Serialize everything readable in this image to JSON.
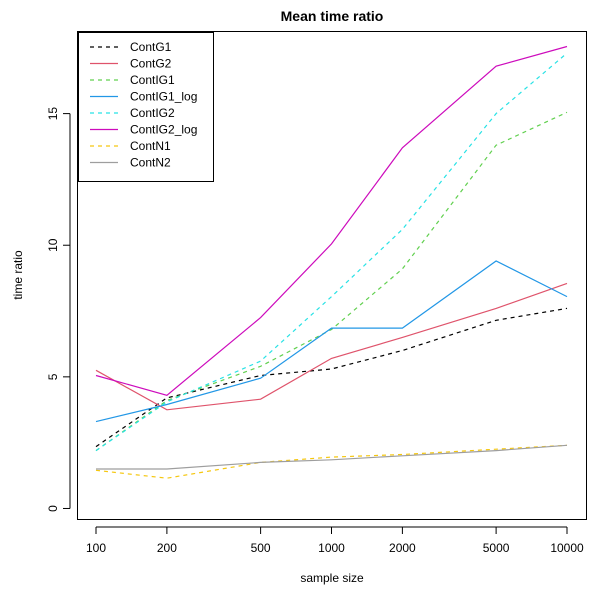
{
  "chart_data": {
    "type": "line",
    "title": "Mean time ratio",
    "xlabel": "sample size",
    "ylabel": "time ratio",
    "x_scale": "log",
    "x": [
      100,
      200,
      500,
      1000,
      2000,
      5000,
      10000
    ],
    "x_tick_labels": [
      "100",
      "200",
      "500",
      "1000",
      "2000",
      "5000",
      "10000"
    ],
    "y_ticks": [
      0,
      5,
      10,
      15
    ],
    "y_tick_labels": [
      "0",
      "5",
      "10",
      "15"
    ],
    "ylim": [
      -0.4,
      18.1
    ],
    "grid": false,
    "legend_position": "top-left",
    "series": [
      {
        "name": "ContG1",
        "color": "#000000",
        "dash": "dashed",
        "values": [
          2.35,
          4.2,
          5.05,
          5.3,
          6.0,
          7.15,
          7.6
        ]
      },
      {
        "name": "ContG2",
        "color": "#DF536B",
        "dash": "solid",
        "values": [
          5.25,
          3.75,
          4.15,
          5.7,
          6.5,
          7.6,
          8.55
        ]
      },
      {
        "name": "ContIG1",
        "color": "#61D04F",
        "dash": "dashed",
        "values": [
          2.2,
          4.1,
          5.4,
          6.8,
          9.1,
          13.8,
          15.05
        ]
      },
      {
        "name": "ContIG1_log",
        "color": "#2297E6",
        "dash": "solid",
        "values": [
          3.3,
          3.95,
          4.95,
          6.85,
          6.85,
          9.4,
          8.05
        ]
      },
      {
        "name": "ContIG2",
        "color": "#28E2E5",
        "dash": "dashed",
        "values": [
          2.2,
          4.05,
          5.6,
          8.05,
          10.6,
          15.0,
          17.3
        ]
      },
      {
        "name": "ContIG2_log",
        "color": "#CD0BBC",
        "dash": "solid",
        "values": [
          5.05,
          4.3,
          7.25,
          10.05,
          13.7,
          16.8,
          17.55
        ]
      },
      {
        "name": "ContN1",
        "color": "#F5C710",
        "dash": "dashed",
        "values": [
          1.45,
          1.15,
          1.75,
          1.95,
          2.05,
          2.25,
          2.4
        ]
      },
      {
        "name": "ContN2",
        "color": "#9E9E9E",
        "dash": "solid",
        "values": [
          1.5,
          1.5,
          1.75,
          1.85,
          2.0,
          2.2,
          2.4
        ]
      }
    ]
  }
}
